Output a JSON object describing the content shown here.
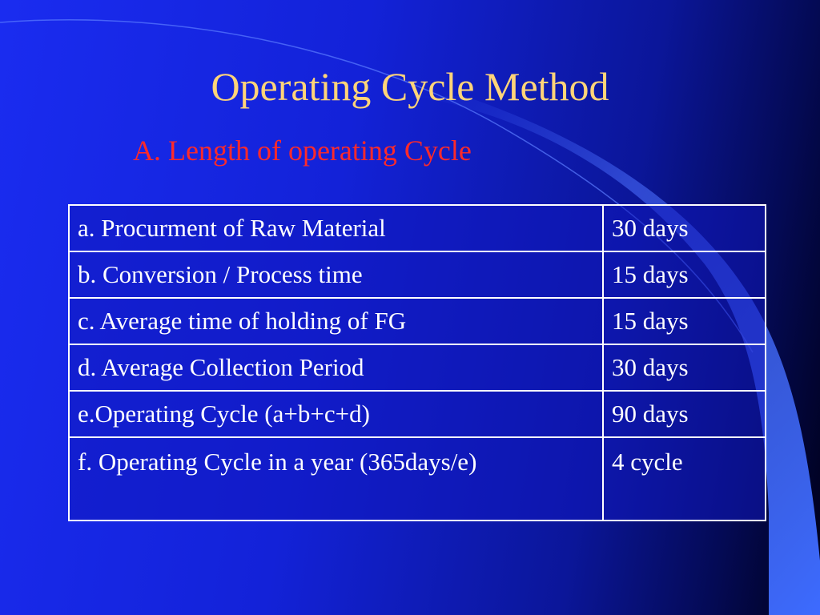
{
  "slide": {
    "title": "Operating Cycle Method",
    "subtitle": "A. Length of operating Cycle",
    "colors": {
      "title": "#ffd479",
      "subtitle": "#ff2a2a",
      "table_text": "#ffffff",
      "background": "#1322d8"
    },
    "table": {
      "rows": [
        {
          "label": "a. Procurment of Raw Material",
          "value": "30 days"
        },
        {
          "label": "b. Conversion / Process time",
          "value": "15 days"
        },
        {
          "label": "c. Average time of holding of FG",
          "value": "15 days"
        },
        {
          "label": "d. Average Collection Period",
          "value": "30 days"
        },
        {
          "label": "e.Operating Cycle (a+b+c+d)",
          "value": "90 days"
        },
        {
          "label": "f. Operating Cycle in a year (365days/e)",
          "value": "4 cycle"
        }
      ]
    }
  }
}
